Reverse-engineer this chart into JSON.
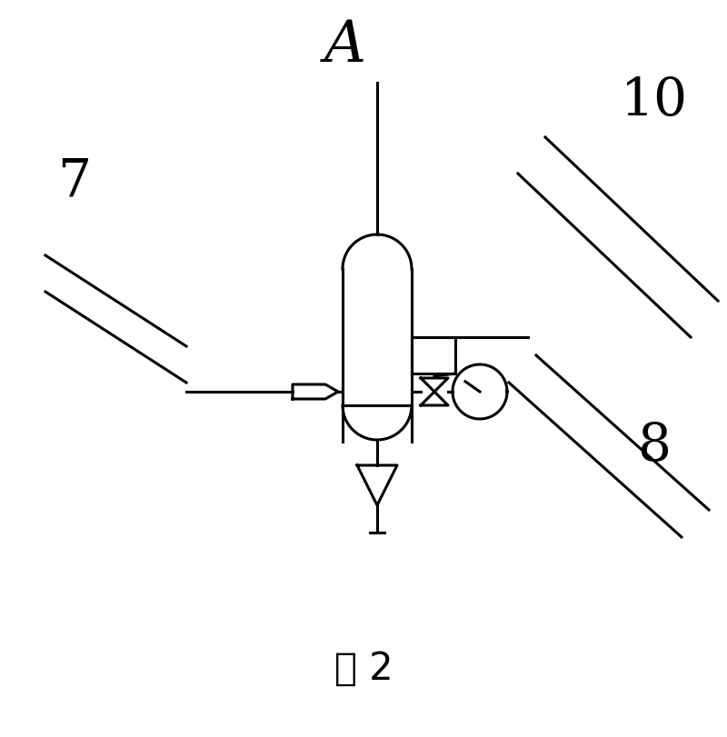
{
  "bg_color": "#ffffff",
  "line_color": "#000000",
  "title_label": "A",
  "caption": "图 2",
  "label_7": "7",
  "label_8": "8",
  "label_10": "10",
  "fig_width": 8.0,
  "fig_height": 8.11,
  "dpi": 100
}
